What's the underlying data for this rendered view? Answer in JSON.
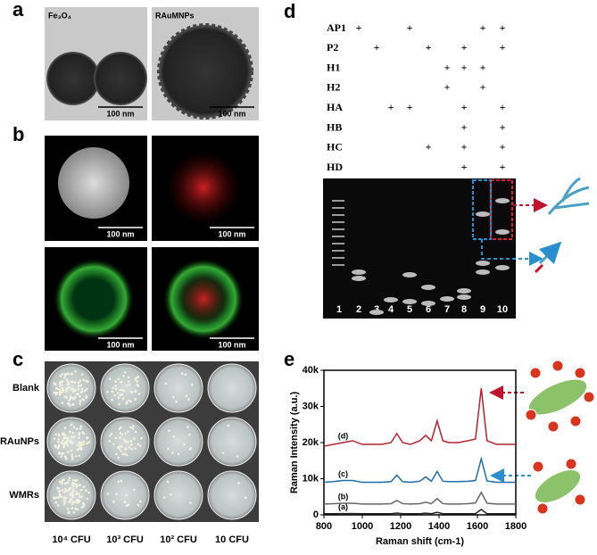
{
  "panel_labels": [
    "a",
    "b",
    "c",
    "d",
    "e"
  ],
  "tem": {
    "labels": [
      "Fe₃O₄",
      "RAuMNPs"
    ],
    "scale": "100 nm"
  },
  "plates": {
    "rows": [
      "Blank",
      "RAuNPs",
      "WMRs"
    ],
    "columns": [
      "10⁴ CFU",
      "10³ CFU",
      "10² CFU",
      "10 CFU"
    ]
  },
  "gel": {
    "rows": [
      {
        "label": "AP1",
        "cells": [
          null,
          "+",
          null,
          null,
          "+",
          null,
          null,
          null,
          "+",
          "+"
        ]
      },
      {
        "label": "P2",
        "cells": [
          null,
          null,
          "+",
          null,
          null,
          "+",
          null,
          "+",
          null,
          "+"
        ]
      },
      {
        "label": "H1",
        "cells": [
          null,
          null,
          null,
          null,
          null,
          null,
          "+",
          "+",
          "+",
          null
        ]
      },
      {
        "label": "H2",
        "cells": [
          null,
          null,
          null,
          null,
          null,
          null,
          "+",
          null,
          "+",
          null
        ]
      },
      {
        "label": "HA",
        "cells": [
          null,
          null,
          null,
          "+",
          "+",
          null,
          null,
          "+",
          null,
          "+"
        ]
      },
      {
        "label": "HB",
        "cells": [
          null,
          null,
          null,
          null,
          null,
          null,
          null,
          "+",
          null,
          "+"
        ]
      },
      {
        "label": "HC",
        "cells": [
          null,
          null,
          null,
          null,
          null,
          "+",
          null,
          "+",
          null,
          "+"
        ]
      },
      {
        "label": "HD",
        "cells": [
          null,
          null,
          null,
          null,
          null,
          null,
          null,
          "+",
          null,
          "+"
        ]
      }
    ],
    "lanes": [
      1,
      2,
      3,
      4,
      5,
      6,
      7,
      8,
      9,
      10
    ]
  },
  "chart_data": {
    "type": "line",
    "xlabel": "Raman shift (cm-1)",
    "ylabel": "Raman Intensity (a.u.)",
    "x": [
      800,
      850,
      900,
      950,
      1000,
      1050,
      1100,
      1150,
      1180,
      1210,
      1250,
      1300,
      1330,
      1360,
      1390,
      1420,
      1450,
      1500,
      1550,
      1590,
      1620,
      1650,
      1700,
      1750,
      1800
    ],
    "xlim": [
      800,
      1800
    ],
    "xticks": [
      800,
      1000,
      1200,
      1400,
      1600,
      1800
    ],
    "ylim": [
      0,
      40000
    ],
    "yticks": [
      0,
      {
        "value": 10000,
        "label": "10k"
      },
      {
        "value": 20000,
        "label": "20k"
      },
      {
        "value": 30000,
        "label": "30k"
      },
      {
        "value": 40000,
        "label": "40k"
      }
    ],
    "series": [
      {
        "name": "(a)",
        "color": "#222222",
        "values": [
          300,
          300,
          350,
          350,
          300,
          300,
          300,
          300,
          500,
          300,
          300,
          300,
          450,
          300,
          700,
          300,
          300,
          300,
          300,
          350,
          1500,
          300,
          300,
          300,
          300
        ]
      },
      {
        "name": "(b)",
        "color": "#666666",
        "values": [
          3000,
          3100,
          3200,
          3200,
          3000,
          3000,
          3000,
          3100,
          4000,
          3100,
          3000,
          3100,
          3500,
          3100,
          4500,
          3100,
          3000,
          3000,
          3100,
          3300,
          6200,
          3200,
          3000,
          3000,
          3000
        ]
      },
      {
        "name": "(c)",
        "color": "#1f6ea8",
        "values": [
          9000,
          9200,
          9500,
          9500,
          9000,
          9000,
          9000,
          9200,
          11000,
          9200,
          9000,
          9300,
          10500,
          9300,
          12000,
          9300,
          9200,
          9200,
          9300,
          9500,
          15500,
          9400,
          9000,
          9000,
          9000
        ]
      },
      {
        "name": "(d)",
        "color": "#b5212e",
        "values": [
          19000,
          19500,
          20000,
          20500,
          19500,
          19500,
          19500,
          20000,
          22500,
          20000,
          19500,
          20500,
          22000,
          20500,
          26000,
          20500,
          20000,
          20000,
          20500,
          21000,
          35000,
          20500,
          19500,
          19500,
          19500
        ]
      }
    ]
  }
}
